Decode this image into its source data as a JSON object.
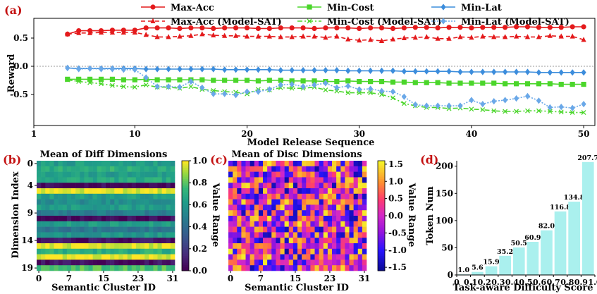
{
  "chart_data": [
    {
      "panel": "(a)",
      "type": "line",
      "xlabel": "Model Release Sequence",
      "ylabel": "Reward",
      "xlim": [
        1,
        51
      ],
      "ylim": [
        -1.05,
        0.85
      ],
      "xticks": [
        1,
        10,
        20,
        30,
        40,
        50
      ],
      "yticks": [
        0.5,
        0.0,
        -0.5
      ],
      "ytick_labels": [
        "0.5",
        "0.0",
        "-0.5"
      ],
      "x_start": 4,
      "x_end": 50,
      "legend": {
        "placement": "top",
        "columns": 3
      },
      "series": [
        {
          "name": "Max-Acc",
          "color": "#e41a1c",
          "style": "solid",
          "marker": "circle",
          "values": [
            0.57,
            0.63,
            0.63,
            0.63,
            0.64,
            0.64,
            0.64,
            0.68,
            0.68,
            0.68,
            0.67,
            0.68,
            0.68,
            0.67,
            0.68,
            0.68,
            0.68,
            0.67,
            0.67,
            0.68,
            0.68,
            0.68,
            0.67,
            0.68,
            0.68,
            0.68,
            0.67,
            0.68,
            0.68,
            0.67,
            0.68,
            0.69,
            0.69,
            0.68,
            0.69,
            0.69,
            0.68,
            0.69,
            0.69,
            0.69,
            0.7,
            0.7,
            0.69,
            0.69,
            0.69,
            0.7,
            0.7
          ]
        },
        {
          "name": "Max-Acc (Model-SAT)",
          "color": "#e41a1c",
          "style": "dashed",
          "marker": "triangle",
          "values": [
            0.57,
            0.59,
            0.59,
            0.6,
            0.6,
            0.6,
            0.6,
            0.56,
            0.52,
            0.52,
            0.53,
            0.54,
            0.57,
            0.55,
            0.54,
            0.54,
            0.53,
            0.53,
            0.53,
            0.52,
            0.52,
            0.53,
            0.53,
            0.51,
            0.53,
            0.48,
            0.46,
            0.47,
            0.45,
            0.48,
            0.5,
            0.51,
            0.52,
            0.49,
            0.49,
            0.52,
            0.51,
            0.53,
            0.52,
            0.52,
            0.53,
            0.52,
            0.52,
            0.54,
            0.53,
            0.53,
            0.47
          ]
        },
        {
          "name": "Min-Cost",
          "color": "#4bd62b",
          "style": "solid",
          "marker": "square",
          "values": [
            -0.23,
            -0.23,
            -0.23,
            -0.23,
            -0.23,
            -0.24,
            -0.24,
            -0.23,
            -0.24,
            -0.24,
            -0.24,
            -0.24,
            -0.24,
            -0.25,
            -0.25,
            -0.25,
            -0.25,
            -0.26,
            -0.25,
            -0.25,
            -0.26,
            -0.26,
            -0.26,
            -0.27,
            -0.27,
            -0.26,
            -0.27,
            -0.27,
            -0.27,
            -0.28,
            -0.28,
            -0.29,
            -0.29,
            -0.29,
            -0.3,
            -0.3,
            -0.3,
            -0.3,
            -0.3,
            -0.31,
            -0.31,
            -0.31,
            -0.31,
            -0.31,
            -0.32,
            -0.32,
            -0.32
          ]
        },
        {
          "name": "Min-Cost (Model-SAT)",
          "color": "#4bd62b",
          "style": "dashdot",
          "marker": "x",
          "values": [
            -0.24,
            -0.27,
            -0.29,
            -0.31,
            -0.34,
            -0.36,
            -0.37,
            -0.33,
            -0.37,
            -0.37,
            -0.39,
            -0.36,
            -0.41,
            -0.43,
            -0.45,
            -0.46,
            -0.49,
            -0.41,
            -0.42,
            -0.38,
            -0.39,
            -0.39,
            -0.37,
            -0.42,
            -0.44,
            -0.47,
            -0.47,
            -0.47,
            -0.5,
            -0.56,
            -0.66,
            -0.7,
            -0.73,
            -0.73,
            -0.75,
            -0.74,
            -0.76,
            -0.77,
            -0.79,
            -0.8,
            -0.8,
            -0.79,
            -0.79,
            -0.8,
            -0.81,
            -0.82,
            -0.82
          ]
        },
        {
          "name": "Min-Lat",
          "color": "#3c8ddc",
          "style": "solid",
          "marker": "diamond",
          "values": [
            -0.03,
            -0.04,
            -0.04,
            -0.04,
            -0.04,
            -0.04,
            -0.04,
            -0.05,
            -0.05,
            -0.05,
            -0.05,
            -0.05,
            -0.05,
            -0.05,
            -0.06,
            -0.06,
            -0.06,
            -0.06,
            -0.06,
            -0.07,
            -0.07,
            -0.07,
            -0.07,
            -0.07,
            -0.07,
            -0.08,
            -0.08,
            -0.08,
            -0.08,
            -0.08,
            -0.09,
            -0.09,
            -0.09,
            -0.09,
            -0.09,
            -0.1,
            -0.1,
            -0.1,
            -0.1,
            -0.1,
            -0.1,
            -0.1,
            -0.11,
            -0.11,
            -0.11,
            -0.11,
            -0.11
          ]
        },
        {
          "name": "Min-Lat (Model-SAT)",
          "color": "#6aa8e8",
          "style": "dotted",
          "marker": "diamond",
          "values": [
            -0.03,
            -0.05,
            -0.04,
            -0.05,
            -0.05,
            -0.06,
            -0.06,
            -0.2,
            -0.36,
            -0.36,
            -0.37,
            -0.27,
            -0.38,
            -0.49,
            -0.49,
            -0.51,
            -0.45,
            -0.45,
            -0.41,
            -0.33,
            -0.32,
            -0.36,
            -0.33,
            -0.3,
            -0.38,
            -0.35,
            -0.41,
            -0.4,
            -0.44,
            -0.45,
            -0.54,
            -0.68,
            -0.7,
            -0.7,
            -0.7,
            -0.7,
            -0.6,
            -0.67,
            -0.62,
            -0.6,
            -0.57,
            -0.53,
            -0.61,
            -0.73,
            -0.72,
            -0.74,
            -0.67
          ]
        }
      ]
    },
    {
      "panel": "(b)",
      "type": "heatmap",
      "title": "Mean of Diff Dimensions",
      "xlabel": "Semantic Cluster ID",
      "ylabel": "Dimension Index",
      "rows": 20,
      "cols": 32,
      "xticks": [
        0,
        7,
        15,
        23,
        31
      ],
      "yticks": [
        0,
        4,
        9,
        14,
        19
      ],
      "colorbar_label": "Value Range",
      "colorbar_ticks": [
        "1.0",
        "0.8",
        "0.6",
        "0.4",
        "0.2",
        "0.0"
      ],
      "vmin": 0.0,
      "vmax": 1.0,
      "colormap": "viridis",
      "row_levels": [
        0.62,
        0.7,
        0.62,
        0.68,
        0.02,
        0.98,
        0.62,
        0.55,
        0.62,
        0.48,
        0.03,
        0.62,
        0.45,
        0.6,
        0.05,
        0.97,
        0.7,
        0.98,
        0.05,
        0.78
      ]
    },
    {
      "panel": "(c)",
      "type": "heatmap",
      "title": "Mean of Disc Dimensions",
      "xlabel": "Semantic Cluster ID",
      "rows": 20,
      "cols": 32,
      "xticks": [
        0,
        7,
        15,
        23,
        31
      ],
      "colorbar_label": "Value Range",
      "colorbar_ticks": [
        "1.5",
        "1.0",
        "0.5",
        "0.0",
        "-0.5",
        "-1.0",
        "-1.5"
      ],
      "vmin": -1.6,
      "vmax": 1.6,
      "colormap": "plasma-like"
    },
    {
      "panel": "(d)",
      "type": "bar",
      "xlabel": "Task-aware Difficulty Score",
      "ylabel": "Token Num",
      "categories": [
        "0",
        "0.1",
        "0.2",
        "0.3",
        "0.4",
        "0.5",
        "0.6",
        "0.7",
        "0.8",
        "0.9",
        "1.0"
      ],
      "bar_positions": [
        0.05,
        0.15,
        0.25,
        0.35,
        0.45,
        0.55,
        0.65,
        0.75,
        0.85,
        0.95
      ],
      "values": [
        1.0,
        5.6,
        15.9,
        35.2,
        50.5,
        60.9,
        82.0,
        116.8,
        134.8,
        207.7
      ],
      "labels": [
        "1.0",
        "5.6",
        "15.9",
        "35.2",
        "50.5",
        "60.9",
        "82.0",
        "116.8",
        "134.8",
        "207.7"
      ],
      "yticks": [
        0,
        50,
        100,
        150,
        200
      ],
      "ylim": [
        0,
        210
      ],
      "bar_color": "#aaf0ee"
    }
  ]
}
